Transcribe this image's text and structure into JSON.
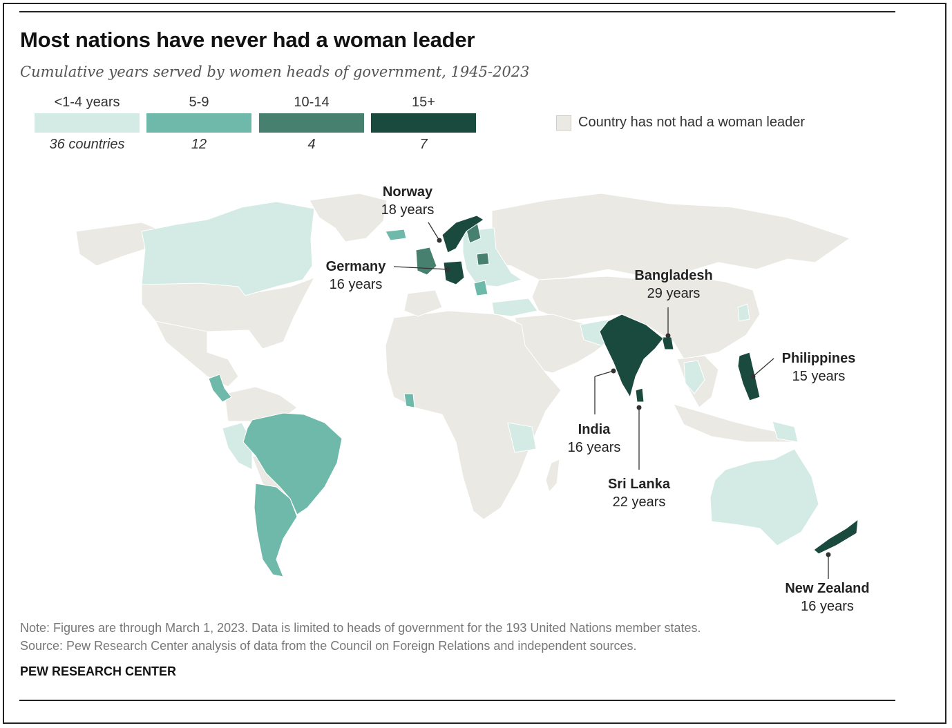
{
  "title": "Most nations have never had a woman leader",
  "subtitle": "Cumulative years served by women heads of government, 1945-2023",
  "legend": {
    "bins": [
      {
        "label": "<1-4 years",
        "count": "36 countries",
        "color": "#d3ebe4"
      },
      {
        "label": "5-9",
        "count": "12",
        "color": "#6eb9a9"
      },
      {
        "label": "10-14",
        "count": "4",
        "color": "#47806f"
      },
      {
        "label": "15+",
        "count": "7",
        "color": "#1a4a3e"
      }
    ],
    "none": {
      "label": "Country has not had a woman leader",
      "color": "#ebe9e3"
    }
  },
  "map_colors": {
    "land": "#ebe9e3",
    "border": "#ffffff",
    "ocean": "#ffffff",
    "leader_line": "#333333"
  },
  "callouts": [
    {
      "name": "Norway",
      "years": "18 years"
    },
    {
      "name": "Germany",
      "years": "16 years"
    },
    {
      "name": "Bangladesh",
      "years": "29 years"
    },
    {
      "name": "Philippines",
      "years": "15 years"
    },
    {
      "name": "India",
      "years": "16 years"
    },
    {
      "name": "Sri Lanka",
      "years": "22 years"
    },
    {
      "name": "New Zealand",
      "years": "16 years"
    }
  ],
  "note": "Note: Figures are through March 1, 2023. Data is limited to heads of government for the 193 United Nations member states.",
  "source": "Source: Pew Research Center analysis of data from the Council on Foreign Relations and independent sources.",
  "brand": "PEW RESEARCH CENTER"
}
